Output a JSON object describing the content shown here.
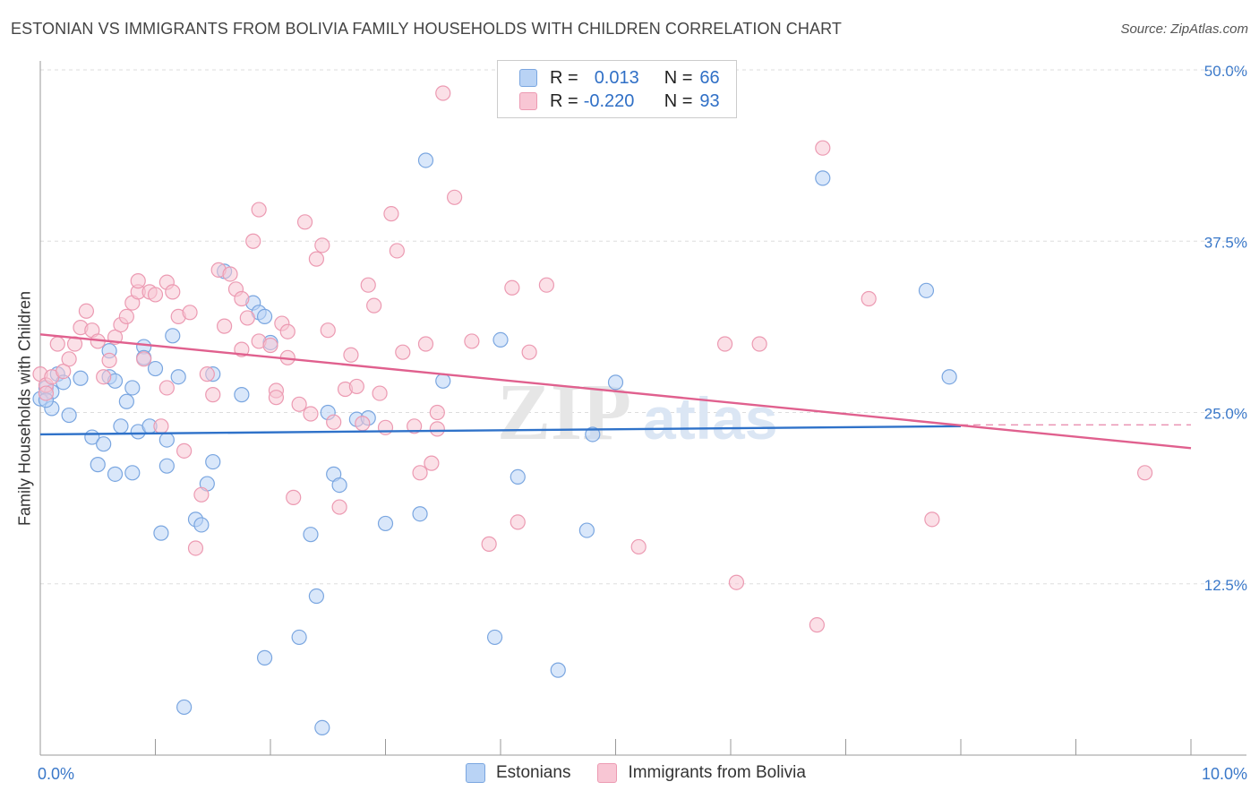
{
  "title": "ESTONIAN VS IMMIGRANTS FROM BOLIVIA FAMILY HOUSEHOLDS WITH CHILDREN CORRELATION CHART",
  "source": "Source: ZipAtlas.com",
  "watermark": {
    "zip": "ZIP",
    "atlas": "atlas"
  },
  "legend": {
    "rows": [
      {
        "r_label": "R =",
        "r_value": "0.013",
        "n_label": "N =",
        "n_value": "66"
      },
      {
        "r_label": "R =",
        "r_value": "-0.220",
        "n_label": "N =",
        "n_value": "93"
      }
    ]
  },
  "bottom_legend": {
    "series1": "Estonians",
    "series2": "Immigrants from Bolivia"
  },
  "colors": {
    "blue_fill": "#b9d3f5",
    "blue_stroke": "#7aa6e0",
    "blue_line": "#2f72c9",
    "pink_fill": "#f8c6d4",
    "pink_stroke": "#ec9ab2",
    "pink_line": "#e0608e",
    "tick_label": "#3a78c9",
    "grid": "#dddddd"
  },
  "chart_data": {
    "type": "scatter",
    "title": "ESTONIAN VS IMMIGRANTS FROM BOLIVIA FAMILY HOUSEHOLDS WITH CHILDREN CORRELATION CHART",
    "xlabel": "",
    "ylabel": "Family Households with Children",
    "xlim": [
      0,
      10
    ],
    "ylim": [
      0,
      50
    ],
    "x_tick_labels": [
      "0.0%",
      "10.0%"
    ],
    "y_ticks": [
      12.5,
      25.0,
      37.5,
      50.0
    ],
    "y_tick_labels": [
      "12.5%",
      "25.0%",
      "37.5%",
      "50.0%"
    ],
    "grid": true,
    "legend_position": "top-center",
    "series": [
      {
        "name": "Estonians",
        "R": 0.013,
        "N": 66,
        "trend": {
          "x": [
            0,
            8.0
          ],
          "y": [
            23.4,
            24.0
          ]
        },
        "points": [
          [
            0.0,
            26.0
          ],
          [
            0.05,
            26.8
          ],
          [
            0.1,
            25.3
          ],
          [
            0.15,
            27.8
          ],
          [
            0.2,
            27.2
          ],
          [
            0.25,
            24.8
          ],
          [
            0.35,
            27.5
          ],
          [
            0.45,
            23.2
          ],
          [
            0.5,
            21.2
          ],
          [
            0.55,
            22.7
          ],
          [
            0.6,
            27.6
          ],
          [
            0.6,
            29.5
          ],
          [
            0.65,
            27.3
          ],
          [
            0.65,
            20.5
          ],
          [
            0.7,
            24.0
          ],
          [
            0.75,
            25.8
          ],
          [
            0.8,
            26.8
          ],
          [
            0.8,
            20.6
          ],
          [
            0.85,
            23.6
          ],
          [
            0.9,
            29.8
          ],
          [
            0.9,
            29.0
          ],
          [
            0.95,
            24.0
          ],
          [
            1.0,
            28.2
          ],
          [
            1.05,
            16.2
          ],
          [
            1.1,
            23.0
          ],
          [
            1.1,
            21.1
          ],
          [
            1.15,
            30.6
          ],
          [
            1.2,
            27.6
          ],
          [
            1.25,
            3.5
          ],
          [
            1.35,
            17.2
          ],
          [
            1.4,
            16.8
          ],
          [
            1.45,
            19.8
          ],
          [
            1.5,
            21.4
          ],
          [
            1.5,
            27.8
          ],
          [
            1.6,
            35.3
          ],
          [
            1.75,
            26.3
          ],
          [
            1.85,
            33.0
          ],
          [
            1.9,
            32.3
          ],
          [
            1.95,
            32.0
          ],
          [
            2.0,
            30.1
          ],
          [
            2.35,
            16.1
          ],
          [
            2.4,
            11.6
          ],
          [
            2.5,
            25.0
          ],
          [
            2.55,
            20.5
          ],
          [
            2.6,
            19.7
          ],
          [
            2.75,
            24.5
          ],
          [
            2.85,
            24.6
          ],
          [
            3.0,
            16.9
          ],
          [
            3.3,
            17.6
          ],
          [
            3.35,
            43.4
          ],
          [
            3.5,
            27.3
          ],
          [
            3.95,
            8.6
          ],
          [
            4.0,
            30.3
          ],
          [
            4.15,
            20.3
          ],
          [
            4.5,
            6.2
          ],
          [
            4.75,
            16.4
          ],
          [
            4.8,
            23.4
          ],
          [
            5.0,
            27.2
          ],
          [
            6.8,
            42.1
          ],
          [
            7.7,
            33.9
          ],
          [
            7.9,
            27.6
          ],
          [
            1.95,
            7.1
          ],
          [
            2.25,
            8.6
          ],
          [
            2.45,
            2.0
          ],
          [
            0.1,
            26.5
          ],
          [
            0.05,
            25.9
          ]
        ]
      },
      {
        "name": "Immigrants from Bolivia",
        "R": -0.22,
        "N": 93,
        "trend": {
          "x": [
            0,
            10
          ],
          "y": [
            30.7,
            22.4
          ]
        },
        "trend_dashed": {
          "x": [
            8.0,
            10
          ],
          "y": [
            24.1,
            24.1
          ]
        },
        "points": [
          [
            0.0,
            27.8
          ],
          [
            0.05,
            27.0
          ],
          [
            0.05,
            26.4
          ],
          [
            0.1,
            27.6
          ],
          [
            0.15,
            30.0
          ],
          [
            0.2,
            28.0
          ],
          [
            0.25,
            28.9
          ],
          [
            0.3,
            30.0
          ],
          [
            0.35,
            31.2
          ],
          [
            0.4,
            32.4
          ],
          [
            0.45,
            31.0
          ],
          [
            0.5,
            30.2
          ],
          [
            0.55,
            27.6
          ],
          [
            0.6,
            28.8
          ],
          [
            0.65,
            30.5
          ],
          [
            0.7,
            31.4
          ],
          [
            0.75,
            32.0
          ],
          [
            0.8,
            33.0
          ],
          [
            0.85,
            33.8
          ],
          [
            0.85,
            34.6
          ],
          [
            0.9,
            28.9
          ],
          [
            0.95,
            33.8
          ],
          [
            1.0,
            33.6
          ],
          [
            1.05,
            24.0
          ],
          [
            1.1,
            34.5
          ],
          [
            1.1,
            26.8
          ],
          [
            1.15,
            33.8
          ],
          [
            1.2,
            32.0
          ],
          [
            1.25,
            22.2
          ],
          [
            1.3,
            32.3
          ],
          [
            1.35,
            15.1
          ],
          [
            1.4,
            19.0
          ],
          [
            1.45,
            27.8
          ],
          [
            1.5,
            26.3
          ],
          [
            1.55,
            35.4
          ],
          [
            1.6,
            31.3
          ],
          [
            1.65,
            35.1
          ],
          [
            1.7,
            34.0
          ],
          [
            1.75,
            33.3
          ],
          [
            1.8,
            31.9
          ],
          [
            1.85,
            37.5
          ],
          [
            1.9,
            30.2
          ],
          [
            1.9,
            39.8
          ],
          [
            2.0,
            29.9
          ],
          [
            2.05,
            26.6
          ],
          [
            2.1,
            31.5
          ],
          [
            2.15,
            29.0
          ],
          [
            2.2,
            18.8
          ],
          [
            2.25,
            25.6
          ],
          [
            2.3,
            38.9
          ],
          [
            2.35,
            24.9
          ],
          [
            2.4,
            36.2
          ],
          [
            2.45,
            37.2
          ],
          [
            2.5,
            31.0
          ],
          [
            2.55,
            24.3
          ],
          [
            2.6,
            18.1
          ],
          [
            2.65,
            26.7
          ],
          [
            2.7,
            29.2
          ],
          [
            2.75,
            26.9
          ],
          [
            2.8,
            24.2
          ],
          [
            2.85,
            34.3
          ],
          [
            2.9,
            32.8
          ],
          [
            3.0,
            23.9
          ],
          [
            3.05,
            39.5
          ],
          [
            3.1,
            36.8
          ],
          [
            3.15,
            29.4
          ],
          [
            3.25,
            24.0
          ],
          [
            3.3,
            20.6
          ],
          [
            3.35,
            30.0
          ],
          [
            3.4,
            21.3
          ],
          [
            3.45,
            25.0
          ],
          [
            3.5,
            48.3
          ],
          [
            3.6,
            40.7
          ],
          [
            3.75,
            30.2
          ],
          [
            3.9,
            15.4
          ],
          [
            4.1,
            34.1
          ],
          [
            4.15,
            17.0
          ],
          [
            4.25,
            29.4
          ],
          [
            4.4,
            34.3
          ],
          [
            5.2,
            15.2
          ],
          [
            5.95,
            30.0
          ],
          [
            6.05,
            12.6
          ],
          [
            6.25,
            30.0
          ],
          [
            6.75,
            9.5
          ],
          [
            6.8,
            44.3
          ],
          [
            7.2,
            33.3
          ],
          [
            7.75,
            17.2
          ],
          [
            9.6,
            20.6
          ],
          [
            2.95,
            26.4
          ],
          [
            3.45,
            23.8
          ],
          [
            2.05,
            26.1
          ],
          [
            1.75,
            29.6
          ],
          [
            2.15,
            30.9
          ]
        ]
      }
    ]
  }
}
